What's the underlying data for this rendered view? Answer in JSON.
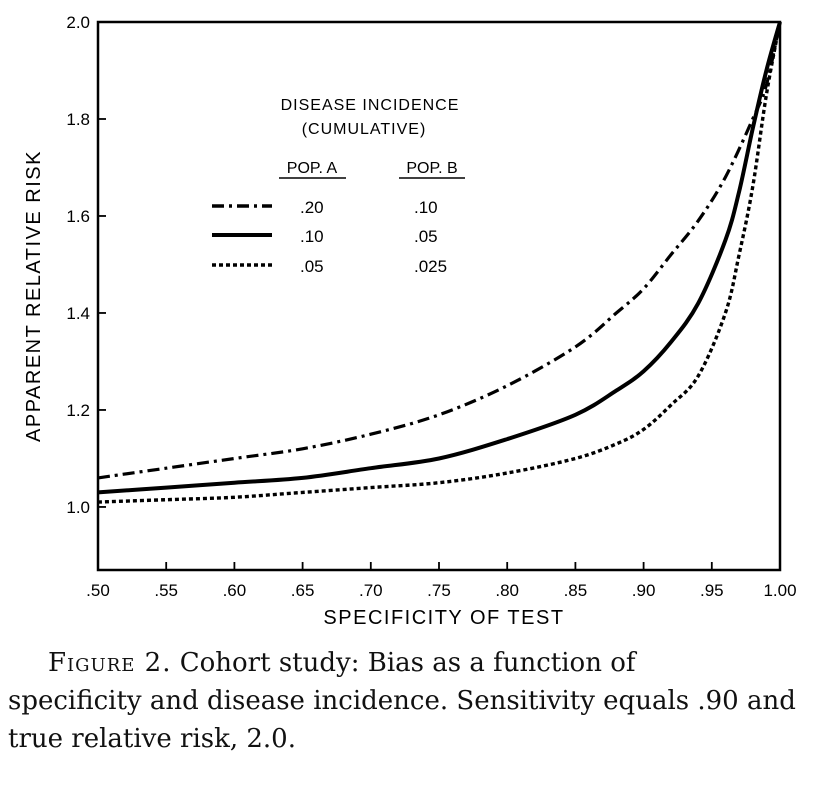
{
  "chart_data": {
    "type": "line",
    "xlabel": "SPECIFICITY OF TEST",
    "ylabel": "APPARENT RELATIVE RISK",
    "xlim": [
      0.5,
      1.0
    ],
    "ylim": [
      0.87,
      2.0
    ],
    "x_ticks": [
      0.5,
      0.55,
      0.6,
      0.65,
      0.7,
      0.75,
      0.8,
      0.85,
      0.9,
      0.95,
      1.0
    ],
    "x_tick_labels": [
      ".50",
      ".55",
      ".60",
      ".65",
      ".70",
      ".75",
      ".80",
      ".85",
      ".90",
      ".95",
      "1.00"
    ],
    "y_ticks": [
      1.0,
      1.2,
      1.4,
      1.6,
      1.8,
      2.0
    ],
    "y_tick_labels": [
      "1.0",
      "1.2",
      "1.4",
      "1.6",
      "1.8",
      "2.0"
    ],
    "grid": false,
    "legend": {
      "placement": "top-left",
      "title_line1": "DISEASE INCIDENCE",
      "title_line2": "(CUMULATIVE)",
      "col_a_header": "POP. A",
      "col_b_header": "POP. B"
    },
    "series": [
      {
        "name": "Pop. A .20 / Pop. B .10",
        "style": "dash-dot",
        "pop_a": ".20",
        "pop_b": ".10",
        "x": [
          0.5,
          0.55,
          0.6,
          0.65,
          0.7,
          0.75,
          0.8,
          0.85,
          0.88,
          0.9,
          0.92,
          0.94,
          0.96,
          0.98,
          0.99,
          1.0
        ],
        "y": [
          1.06,
          1.08,
          1.1,
          1.12,
          1.15,
          1.19,
          1.25,
          1.33,
          1.4,
          1.45,
          1.52,
          1.59,
          1.68,
          1.8,
          1.87,
          2.0
        ]
      },
      {
        "name": "Pop. A .10 / Pop. B .05",
        "style": "solid",
        "pop_a": ".10",
        "pop_b": ".05",
        "x": [
          0.5,
          0.55,
          0.6,
          0.65,
          0.7,
          0.75,
          0.8,
          0.85,
          0.88,
          0.9,
          0.92,
          0.94,
          0.96,
          0.97,
          0.98,
          0.99,
          1.0
        ],
        "y": [
          1.03,
          1.04,
          1.05,
          1.06,
          1.08,
          1.1,
          1.14,
          1.19,
          1.24,
          1.28,
          1.34,
          1.42,
          1.55,
          1.65,
          1.78,
          1.9,
          2.0
        ]
      },
      {
        "name": "Pop. A .05 / Pop. B .025",
        "style": "dotted",
        "pop_a": ".05",
        "pop_b": ".025",
        "x": [
          0.5,
          0.55,
          0.6,
          0.65,
          0.7,
          0.75,
          0.8,
          0.85,
          0.88,
          0.9,
          0.92,
          0.94,
          0.96,
          0.97,
          0.98,
          0.99,
          1.0
        ],
        "y": [
          1.01,
          1.015,
          1.02,
          1.03,
          1.04,
          1.05,
          1.07,
          1.1,
          1.13,
          1.16,
          1.21,
          1.27,
          1.4,
          1.52,
          1.66,
          1.85,
          2.0
        ]
      }
    ]
  },
  "caption": {
    "label": "Figure 2.",
    "text_line1": "Cohort study: Bias as a function of",
    "text_rest": "specificity and disease incidence. Sensitivity equals .90 and true relative risk, 2.0."
  }
}
